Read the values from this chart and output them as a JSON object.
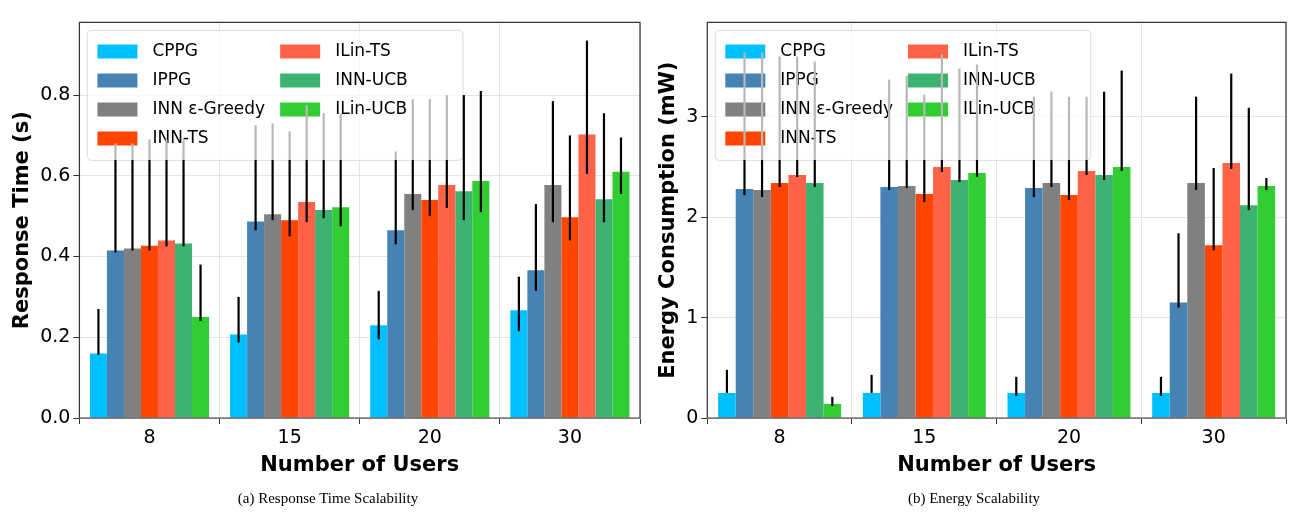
{
  "chart_data": [
    {
      "type": "bar",
      "xlabel": "Number of Users",
      "ylabel": "Response Time (s)",
      "categories": [
        "8",
        "15",
        "20",
        "30"
      ],
      "ylim": [
        0,
        0.98
      ],
      "yticks": [
        {
          "value": 0,
          "label": "0.0"
        },
        {
          "value": 0.2,
          "label": "0.2"
        },
        {
          "value": 0.4,
          "label": "0.4"
        },
        {
          "value": 0.6,
          "label": "0.6"
        },
        {
          "value": 0.8,
          "label": "0.8"
        }
      ],
      "grid": true,
      "legend": "top left",
      "annotations": [
        "(a) Response Time Scalability"
      ],
      "series": [
        {
          "name": "CPPG",
          "color": "#00bfff",
          "values": [
            0.16,
            0.207,
            0.23,
            0.267
          ],
          "errors": [
            [
              0.157,
              0.27
            ],
            [
              0.187,
              0.3
            ],
            [
              0.195,
              0.315
            ],
            [
              0.215,
              0.35
            ]
          ]
        },
        {
          "name": "IPPG",
          "color": "#4682b4",
          "values": [
            0.415,
            0.487,
            0.465,
            0.366
          ],
          "errors": [
            [
              0.41,
              0.68
            ],
            [
              0.465,
              0.725
            ],
            [
              0.43,
              0.66
            ],
            [
              0.315,
              0.53
            ]
          ]
        },
        {
          "name": "INN ε-Greedy",
          "color": "#808080",
          "values": [
            0.42,
            0.505,
            0.555,
            0.577
          ],
          "errors": [
            [
              0.415,
              0.68
            ],
            [
              0.49,
              0.73
            ],
            [
              0.515,
              0.79
            ],
            [
              0.485,
              0.785
            ]
          ]
        },
        {
          "name": "INN-TS",
          "color": "#ff4500",
          "values": [
            0.427,
            0.49,
            0.54,
            0.497
          ],
          "errors": [
            [
              0.415,
              0.69
            ],
            [
              0.45,
              0.71
            ],
            [
              0.5,
              0.79
            ],
            [
              0.44,
              0.7
            ]
          ]
        },
        {
          "name": "ILin-TS",
          "color": "#ff6347",
          "values": [
            0.44,
            0.535,
            0.577,
            0.702
          ],
          "errors": [
            [
              0.425,
              0.69
            ],
            [
              0.485,
              0.775
            ],
            [
              0.52,
              0.8
            ],
            [
              0.605,
              0.935
            ]
          ]
        },
        {
          "name": "INN-UCB",
          "color": "#3cb371",
          "values": [
            0.432,
            0.515,
            0.562,
            0.542
          ],
          "errors": [
            [
              0.425,
              0.69
            ],
            [
              0.495,
              0.755
            ],
            [
              0.49,
              0.8
            ],
            [
              0.485,
              0.755
            ]
          ]
        },
        {
          "name": "ILin-UCB",
          "color": "#32cd32",
          "values": [
            0.25,
            0.522,
            0.587,
            0.61
          ],
          "errors": [
            [
              0.24,
              0.38
            ],
            [
              0.475,
              0.755
            ],
            [
              0.51,
              0.81
            ],
            [
              0.555,
              0.695
            ]
          ]
        }
      ]
    },
    {
      "type": "bar",
      "xlabel": "Number of Users",
      "ylabel": "Energy Consumption (mW)",
      "categories": [
        "8",
        "15",
        "20",
        "30"
      ],
      "ylim": [
        0,
        3.94
      ],
      "yticks": [
        0,
        1,
        2,
        3
      ],
      "grid": true,
      "legend": "top left",
      "annotations": [
        "(b) Energy Scalability"
      ],
      "series": [
        {
          "name": "CPPG",
          "color": "#00bfff",
          "values": [
            0.25,
            0.25,
            0.25,
            0.25
          ],
          "errors": [
            [
              0.25,
              0.48
            ],
            [
              0.25,
              0.43
            ],
            [
              0.22,
              0.41
            ],
            [
              0.22,
              0.41
            ]
          ]
        },
        {
          "name": "IPPG",
          "color": "#4682b4",
          "values": [
            2.28,
            2.3,
            2.29,
            1.15
          ],
          "errors": [
            [
              2.22,
              3.64
            ],
            [
              2.27,
              3.37
            ],
            [
              2.2,
              3.2
            ],
            [
              1.1,
              1.84
            ]
          ]
        },
        {
          "name": "INN ε-Greedy",
          "color": "#808080",
          "values": [
            2.27,
            2.31,
            2.34,
            2.34
          ],
          "errors": [
            [
              2.2,
              3.64
            ],
            [
              2.29,
              3.41
            ],
            [
              2.3,
              3.25
            ],
            [
              2.27,
              3.2
            ]
          ]
        },
        {
          "name": "INN-TS",
          "color": "#ff4500",
          "values": [
            2.34,
            2.23,
            2.22,
            1.72
          ],
          "errors": [
            [
              2.3,
              3.6
            ],
            [
              2.15,
              3.22
            ],
            [
              2.17,
              3.2
            ],
            [
              1.67,
              2.49
            ]
          ]
        },
        {
          "name": "ILin-TS",
          "color": "#ff6347",
          "values": [
            2.42,
            2.5,
            2.46,
            2.54
          ],
          "errors": [
            [
              2.4,
              3.6
            ],
            [
              2.45,
              3.62
            ],
            [
              2.42,
              3.2
            ],
            [
              2.48,
              3.43
            ]
          ]
        },
        {
          "name": "INN-UCB",
          "color": "#3cb371",
          "values": [
            2.34,
            2.37,
            2.42,
            2.12
          ],
          "errors": [
            [
              2.3,
              3.55
            ],
            [
              2.35,
              3.48
            ],
            [
              2.37,
              3.25
            ],
            [
              2.07,
              3.09
            ]
          ]
        },
        {
          "name": "ILin-UCB",
          "color": "#32cd32",
          "values": [
            0.14,
            2.44,
            2.5,
            2.31
          ],
          "errors": [
            [
              0.12,
              0.21
            ],
            [
              2.4,
              3.52
            ],
            [
              2.46,
              3.46
            ],
            [
              2.27,
              2.39
            ]
          ]
        }
      ]
    }
  ]
}
